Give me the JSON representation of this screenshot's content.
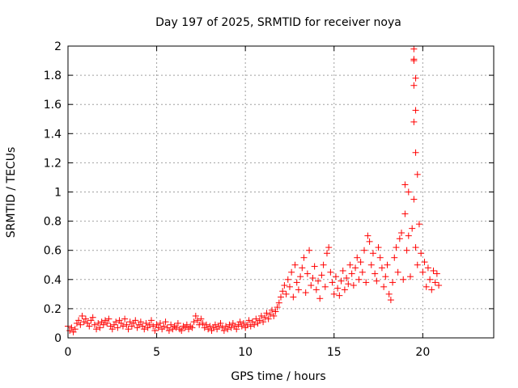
{
  "chart_data": {
    "type": "scatter",
    "title": "Day 197 of 2025, SRMTID for receiver noya",
    "xlabel": "GPS time / hours",
    "ylabel": "SRMTID / TECUs",
    "xlim": [
      0,
      24
    ],
    "ylim": [
      0,
      2
    ],
    "xticks": [
      0,
      5,
      10,
      15,
      20
    ],
    "yticks": [
      0,
      0.2,
      0.4,
      0.6,
      0.8,
      1,
      1.2,
      1.4,
      1.6,
      1.8,
      2
    ],
    "ytick_labels": [
      "0",
      "0.2",
      "0.4",
      "0.6",
      "0.8",
      "1",
      "1.2",
      "1.4",
      "1.6",
      "1.8",
      "2"
    ],
    "grid": true,
    "marker": "+",
    "color": "#ff0000",
    "series": [
      {
        "name": "SRMTID",
        "x": [
          0.0,
          0.1,
          0.2,
          0.3,
          0.4,
          0.5,
          0.6,
          0.7,
          0.8,
          0.9,
          1.0,
          1.1,
          1.2,
          1.3,
          1.4,
          1.5,
          1.6,
          1.7,
          1.8,
          1.9,
          2.0,
          2.1,
          2.2,
          2.3,
          2.4,
          2.5,
          2.6,
          2.7,
          2.8,
          2.9,
          3.0,
          3.1,
          3.2,
          3.3,
          3.4,
          3.5,
          3.6,
          3.7,
          3.8,
          3.9,
          4.0,
          4.1,
          4.2,
          4.3,
          4.4,
          4.5,
          4.6,
          4.7,
          4.8,
          4.9,
          5.0,
          5.1,
          5.2,
          5.3,
          5.4,
          5.5,
          5.6,
          5.7,
          5.8,
          5.9,
          6.0,
          6.1,
          6.2,
          6.3,
          6.4,
          6.5,
          6.6,
          6.7,
          6.8,
          6.9,
          7.0,
          7.1,
          7.2,
          7.3,
          7.4,
          7.5,
          7.6,
          7.7,
          7.8,
          7.9,
          8.0,
          8.1,
          8.2,
          8.3,
          8.4,
          8.5,
          8.6,
          8.7,
          8.8,
          8.9,
          9.0,
          9.1,
          9.2,
          9.3,
          9.4,
          9.5,
          9.6,
          9.7,
          9.8,
          9.9,
          10.0,
          10.1,
          10.2,
          10.3,
          10.4,
          10.5,
          10.6,
          10.7,
          10.8,
          10.9,
          11.0,
          11.1,
          11.2,
          11.3,
          11.4,
          11.5,
          11.6,
          11.7,
          11.8,
          11.9,
          12.0,
          12.1,
          12.2,
          12.3,
          12.4,
          12.5,
          12.6,
          12.7,
          12.8,
          12.9,
          13.0,
          13.1,
          13.2,
          13.3,
          13.4,
          13.5,
          13.6,
          13.7,
          13.8,
          13.9,
          14.0,
          14.1,
          14.2,
          14.3,
          14.4,
          14.5,
          14.6,
          14.7,
          14.8,
          14.9,
          15.0,
          15.1,
          15.2,
          15.3,
          15.4,
          15.5,
          15.6,
          15.7,
          15.8,
          15.9,
          16.0,
          16.1,
          16.2,
          16.3,
          16.4,
          16.5,
          16.6,
          16.7,
          16.8,
          16.9,
          17.0,
          17.1,
          17.2,
          17.3,
          17.4,
          17.5,
          17.6,
          17.7,
          17.8,
          17.9,
          18.0,
          18.1,
          18.2,
          18.3,
          18.4,
          18.5,
          18.6,
          18.7,
          18.8,
          18.9,
          19.0,
          19.1,
          19.2,
          19.3,
          19.4,
          19.5,
          19.6,
          19.7,
          19.8,
          19.9,
          20.0,
          20.1,
          20.2,
          20.3,
          20.4,
          20.5,
          20.6,
          20.7,
          20.8,
          20.9
        ],
        "y": [
          0.08,
          0.05,
          0.07,
          0.04,
          0.06,
          0.1,
          0.12,
          0.09,
          0.15,
          0.11,
          0.13,
          0.1,
          0.08,
          0.12,
          0.14,
          0.09,
          0.06,
          0.1,
          0.07,
          0.11,
          0.09,
          0.12,
          0.1,
          0.13,
          0.08,
          0.06,
          0.09,
          0.11,
          0.07,
          0.12,
          0.1,
          0.08,
          0.13,
          0.09,
          0.06,
          0.11,
          0.08,
          0.1,
          0.12,
          0.07,
          0.09,
          0.11,
          0.08,
          0.06,
          0.1,
          0.07,
          0.09,
          0.12,
          0.08,
          0.05,
          0.09,
          0.07,
          0.1,
          0.06,
          0.08,
          0.11,
          0.07,
          0.05,
          0.09,
          0.06,
          0.08,
          0.07,
          0.1,
          0.06,
          0.05,
          0.08,
          0.07,
          0.09,
          0.06,
          0.08,
          0.07,
          0.11,
          0.15,
          0.12,
          0.09,
          0.13,
          0.1,
          0.07,
          0.09,
          0.06,
          0.08,
          0.05,
          0.07,
          0.09,
          0.06,
          0.08,
          0.1,
          0.07,
          0.05,
          0.08,
          0.06,
          0.09,
          0.07,
          0.1,
          0.08,
          0.06,
          0.09,
          0.11,
          0.08,
          0.1,
          0.07,
          0.09,
          0.12,
          0.08,
          0.11,
          0.09,
          0.13,
          0.1,
          0.12,
          0.15,
          0.11,
          0.14,
          0.17,
          0.13,
          0.16,
          0.19,
          0.15,
          0.18,
          0.21,
          0.24,
          0.28,
          0.32,
          0.36,
          0.3,
          0.4,
          0.35,
          0.45,
          0.28,
          0.5,
          0.38,
          0.33,
          0.42,
          0.48,
          0.55,
          0.31,
          0.44,
          0.6,
          0.36,
          0.41,
          0.49,
          0.33,
          0.39,
          0.27,
          0.43,
          0.5,
          0.35,
          0.58,
          0.62,
          0.45,
          0.38,
          0.3,
          0.42,
          0.34,
          0.29,
          0.39,
          0.46,
          0.33,
          0.41,
          0.37,
          0.5,
          0.44,
          0.36,
          0.48,
          0.55,
          0.4,
          0.52,
          0.45,
          0.6,
          0.38,
          0.7,
          0.66,
          0.5,
          0.58,
          0.44,
          0.39,
          0.62,
          0.55,
          0.48,
          0.35,
          0.42,
          0.5,
          0.3,
          0.26,
          0.38,
          0.55,
          0.62,
          0.45,
          0.68,
          0.72,
          0.4,
          0.85,
          0.6,
          0.7,
          0.42,
          0.75,
          0.95,
          0.62,
          0.5,
          0.78,
          0.58,
          0.45,
          0.52,
          0.35,
          0.48,
          0.4,
          0.33,
          0.46,
          0.38,
          0.44,
          0.36
        ],
        "outliers_x": [
          19.5,
          19.5,
          19.5,
          19.6,
          19.5,
          19.6,
          19.5,
          19.6,
          19.7,
          19.0,
          19.2
        ],
        "outliers_y": [
          1.98,
          1.91,
          1.9,
          1.78,
          1.73,
          1.56,
          1.48,
          1.27,
          1.12,
          1.05,
          1.0
        ]
      }
    ]
  }
}
